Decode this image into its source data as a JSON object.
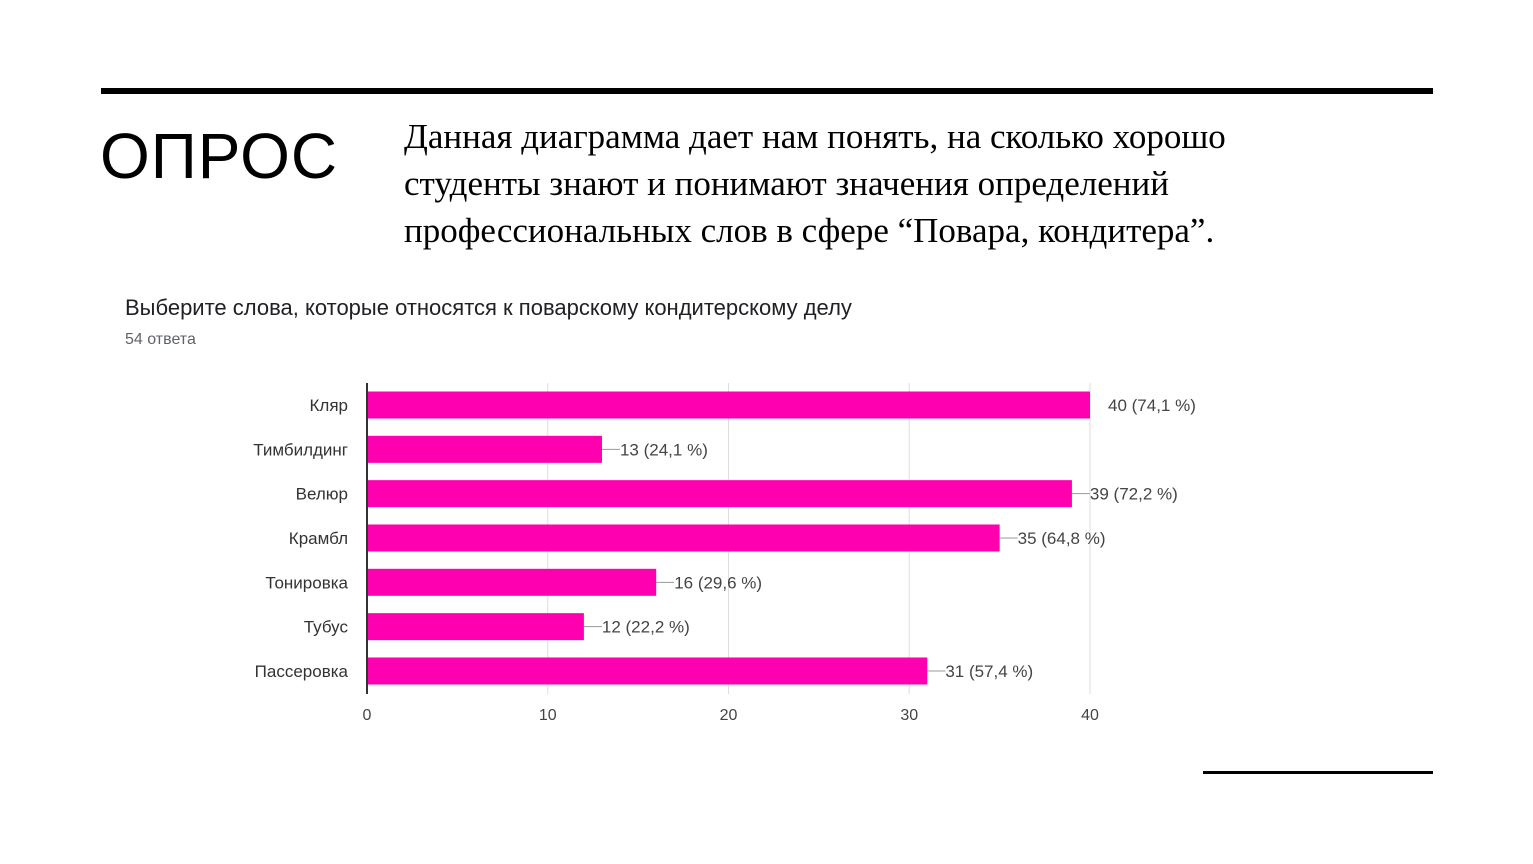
{
  "slide": {
    "title": "ОПРОС",
    "text": "Данная диаграмма дает нам понять, на сколько хорошо студенты знают и понимают значения определений профессиональных слов в сфере “Повара, кондитера”."
  },
  "chart_data": {
    "type": "bar",
    "orientation": "horizontal",
    "title": "Выберите слова, которые относятся к поварскому кондитерскому делу",
    "subtitle": "54 ответа",
    "categories": [
      "Кляр",
      "Тимбилдинг",
      "Велюр",
      "Крамбл",
      "Тонировка",
      "Тубус",
      "Пассеровка"
    ],
    "values": [
      40,
      13,
      39,
      35,
      16,
      12,
      31
    ],
    "data_labels": [
      "40 (74,1 %)",
      "13 (24,1 %)",
      "39 (72,2 %)",
      "35 (64,8 %)",
      "16 (29,6 %)",
      "12 (22,2 %)",
      "31 (57,4 %)"
    ],
    "xlim": [
      0,
      40
    ],
    "xticks": [
      0,
      10,
      20,
      30,
      40
    ],
    "grid": true,
    "bar_color": "#ff00b0",
    "grid_color": "#dddddd",
    "axis_color": "#333333",
    "label_color": "#444444"
  }
}
